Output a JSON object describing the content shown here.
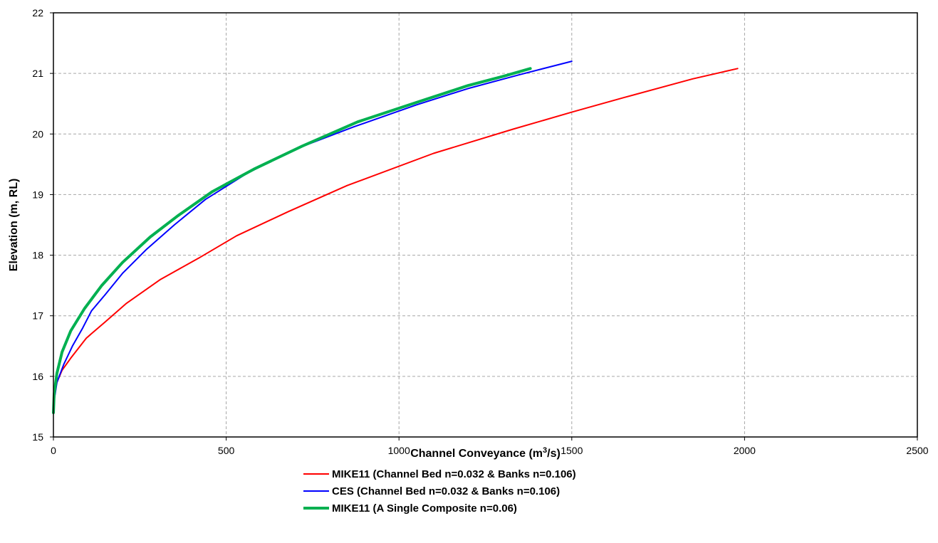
{
  "chart_data": {
    "type": "line",
    "title": "",
    "xlabel": {
      "prefix": "Channel Conveyance (m",
      "sup": "3",
      "suffix": "/s)"
    },
    "ylabel": "Elevation (m, RL)",
    "xlim": [
      0,
      2500
    ],
    "ylim": [
      15,
      22
    ],
    "x_ticks": [
      0,
      500,
      1000,
      1500,
      2000,
      2500
    ],
    "y_ticks": [
      15,
      16,
      17,
      18,
      19,
      20,
      21,
      22
    ],
    "grid": true,
    "grid_style": "dashed",
    "legend_position": "bottom",
    "series": [
      {
        "name": "MIKE11 (Channel Bed n=0.032 & Banks n=0.106)",
        "color": "#ff0000",
        "line_width": 2,
        "points": [
          [
            0,
            15.4
          ],
          [
            2,
            15.7
          ],
          [
            10,
            15.9
          ],
          [
            25,
            16.1
          ],
          [
            50,
            16.3
          ],
          [
            95,
            16.63
          ],
          [
            150,
            16.9
          ],
          [
            210,
            17.2
          ],
          [
            310,
            17.6
          ],
          [
            420,
            17.95
          ],
          [
            530,
            18.32
          ],
          [
            680,
            18.72
          ],
          [
            850,
            19.15
          ],
          [
            1100,
            19.68
          ],
          [
            1330,
            20.08
          ],
          [
            1500,
            20.36
          ],
          [
            1650,
            20.6
          ],
          [
            1850,
            20.91
          ],
          [
            1980,
            21.08
          ]
        ]
      },
      {
        "name": "CES (Channel Bed n=0.032 & Banks n=0.106)",
        "color": "#0000ff",
        "line_width": 2,
        "points": [
          [
            0,
            15.4
          ],
          [
            2,
            15.6
          ],
          [
            10,
            15.9
          ],
          [
            30,
            16.2
          ],
          [
            55,
            16.5
          ],
          [
            85,
            16.8
          ],
          [
            110,
            17.08
          ],
          [
            150,
            17.35
          ],
          [
            200,
            17.7
          ],
          [
            270,
            18.1
          ],
          [
            350,
            18.5
          ],
          [
            440,
            18.92
          ],
          [
            560,
            19.35
          ],
          [
            700,
            19.75
          ],
          [
            870,
            20.12
          ],
          [
            1050,
            20.48
          ],
          [
            1200,
            20.75
          ],
          [
            1350,
            20.98
          ],
          [
            1500,
            21.2
          ]
        ]
      },
      {
        "name": "MIKE11 (A Single Composite n=0.06)",
        "color": "#00b050",
        "line_width": 4,
        "points": [
          [
            0,
            15.4
          ],
          [
            2,
            15.7
          ],
          [
            10,
            16.05
          ],
          [
            25,
            16.4
          ],
          [
            50,
            16.75
          ],
          [
            90,
            17.12
          ],
          [
            140,
            17.5
          ],
          [
            200,
            17.88
          ],
          [
            280,
            18.3
          ],
          [
            360,
            18.65
          ],
          [
            460,
            19.05
          ],
          [
            580,
            19.42
          ],
          [
            720,
            19.8
          ],
          [
            880,
            20.2
          ],
          [
            1050,
            20.52
          ],
          [
            1200,
            20.8
          ],
          [
            1300,
            20.95
          ],
          [
            1380,
            21.08
          ]
        ]
      }
    ]
  }
}
